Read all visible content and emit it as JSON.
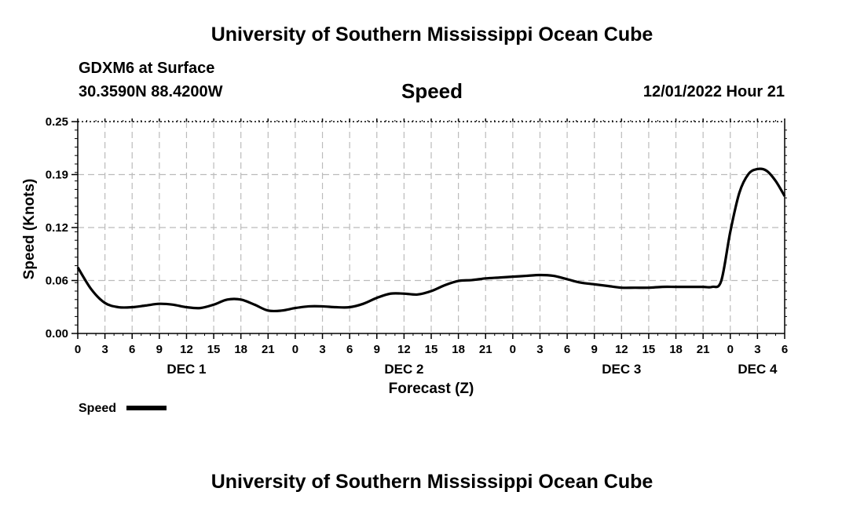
{
  "header": {
    "title": "University of Southern Mississippi Ocean Cube",
    "station": "GDXM6 at Surface",
    "coords": "30.3590N  88.4200W",
    "variable": "Speed",
    "datetime": "12/01/2022 Hour 21"
  },
  "footer": {
    "title": "University of Southern Mississippi Ocean Cube"
  },
  "colors": {
    "line": "#000000",
    "grid": "#bbbbbb",
    "background": "#ffffff"
  },
  "chart_data": {
    "type": "line",
    "title": "Speed",
    "xlabel": "Forecast (Z)",
    "ylabel": "Speed (Knots)",
    "xlim": [
      0,
      78
    ],
    "ylim": [
      0,
      0.25
    ],
    "grid": true,
    "legend": {
      "position": "bottom-left",
      "entries": [
        "Speed"
      ]
    },
    "yticks": [
      {
        "value": 0,
        "label": "0.00"
      },
      {
        "value": 0.0625,
        "label": "0.06"
      },
      {
        "value": 0.125,
        "label": "0.12"
      },
      {
        "value": 0.1875,
        "label": "0.19"
      },
      {
        "value": 0.25,
        "label": "0.25"
      }
    ],
    "xticks": [
      "0",
      "3",
      "6",
      "9",
      "12",
      "15",
      "18",
      "21",
      "0",
      "3",
      "6",
      "9",
      "12",
      "15",
      "18",
      "21",
      "0",
      "3",
      "6",
      "9",
      "12",
      "15",
      "18",
      "21",
      "0",
      "3",
      "6"
    ],
    "day_labels": [
      {
        "label": "DEC 1",
        "hour": 12
      },
      {
        "label": "DEC 2",
        "hour": 36
      },
      {
        "label": "DEC 3",
        "hour": 60
      },
      {
        "label": "DEC 4",
        "hour": 75
      }
    ],
    "series": [
      {
        "name": "Speed",
        "x": [
          0,
          1.5,
          3,
          4.5,
          6,
          7.5,
          9,
          10.5,
          12,
          13.5,
          15,
          16.5,
          18,
          19.5,
          21,
          22.5,
          24,
          25.5,
          27,
          28.5,
          30,
          31.5,
          33,
          34.5,
          36,
          37.5,
          39,
          40.5,
          42,
          43.5,
          45,
          46.5,
          48,
          49.5,
          51,
          52.5,
          54,
          55.5,
          57,
          58.5,
          60,
          61.5,
          63,
          64.5,
          66,
          67.5,
          69,
          70,
          71,
          72,
          73,
          74,
          75,
          76,
          77,
          78
        ],
        "values": [
          0.078,
          0.052,
          0.036,
          0.031,
          0.031,
          0.033,
          0.035,
          0.034,
          0.031,
          0.03,
          0.034,
          0.04,
          0.04,
          0.034,
          0.027,
          0.027,
          0.03,
          0.032,
          0.032,
          0.031,
          0.031,
          0.035,
          0.042,
          0.047,
          0.047,
          0.046,
          0.05,
          0.057,
          0.062,
          0.063,
          0.065,
          0.066,
          0.067,
          0.068,
          0.069,
          0.068,
          0.064,
          0.06,
          0.058,
          0.056,
          0.054,
          0.054,
          0.054,
          0.055,
          0.055,
          0.055,
          0.055,
          0.055,
          0.062,
          0.12,
          0.166,
          0.188,
          0.194,
          0.192,
          0.18,
          0.162
        ]
      }
    ]
  }
}
